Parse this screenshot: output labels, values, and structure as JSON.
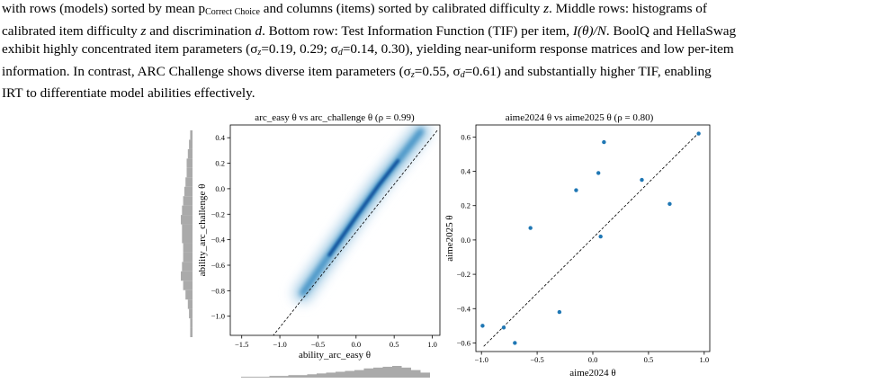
{
  "caption": {
    "line1_a": "with rows (models) sorted by mean ",
    "line1_p": "p",
    "line1_sub": "Correct Choice",
    "line1_b": " and columns (items) sorted by calibrated difficulty ",
    "line1_z": "z",
    "line1_c": ". Middle rows: histograms of",
    "line2_a": "calibrated item difficulty ",
    "line2_z": "z",
    "line2_b": " and discrimination ",
    "line2_d": "d",
    "line2_c": ". Bottom row: Test Information Function (TIF) per item, ",
    "line2_math": "I(θ)/N",
    "line2_d2": ". BoolQ and HellaSwag",
    "line3": "exhibit highly concentrated item parameters (σ",
    "line3_z": "z",
    "line3_b": "=0.19, 0.29; σ",
    "line3_d": "d",
    "line3_c": "=0.14, 0.30), yielding near-uniform response matrices and low per-item",
    "line4": "information. In contrast, ARC Challenge shows diverse item parameters (σ",
    "line4_z": "z",
    "line4_b": "=0.55, σ",
    "line4_d": "d",
    "line4_c": "=0.61) and substantially higher TIF, enabling",
    "line5": "IRT to differentiate model abilities effectively."
  },
  "chart_data": [
    {
      "type": "heatmap",
      "title": "arc_easy θ vs arc_challenge θ (ρ = 0.99)",
      "xlabel": "ability_arc_easy θ",
      "ylabel": "ability_arc_challenge θ",
      "xlim": [
        -1.65,
        1.1
      ],
      "ylim": [
        -1.15,
        0.5
      ],
      "xticks": [
        "−1.5",
        "−1.0",
        "−0.5",
        "0.0",
        "0.5",
        "1.0"
      ],
      "xtick_values": [
        -1.5,
        -1.0,
        -0.5,
        0.0,
        0.5,
        1.0
      ],
      "yticks": [
        "0.4",
        "0.2",
        "0.0",
        "−0.2",
        "−0.4",
        "−0.6",
        "−0.8",
        "−1.0"
      ],
      "ytick_values": [
        0.4,
        0.2,
        0.0,
        -0.2,
        -0.4,
        -0.6,
        -0.8,
        -1.0
      ],
      "identity_line": true,
      "density_ridge": [
        [
          -0.7,
          -0.82
        ],
        [
          -0.35,
          -0.52
        ],
        [
          0.0,
          -0.22
        ],
        [
          0.3,
          0.03
        ],
        [
          0.55,
          0.22
        ],
        [
          0.85,
          0.45
        ]
      ],
      "marginal_x_hist": [
        1,
        1,
        1,
        2,
        2,
        3,
        3,
        4,
        5,
        6,
        7,
        8,
        9,
        11,
        12,
        13,
        14,
        12,
        9,
        6
      ],
      "marginal_y_hist": [
        2,
        3,
        4,
        5,
        5,
        6,
        7,
        8,
        9,
        10,
        9,
        9,
        8,
        8,
        9,
        10,
        8,
        6,
        4,
        3,
        2,
        2
      ]
    },
    {
      "type": "scatter",
      "title": "aime2024 θ vs aime2025 θ (ρ = 0.80)",
      "xlabel": "aime2024 θ",
      "ylabel": "aime2025 θ",
      "xlim": [
        -1.05,
        1.05
      ],
      "ylim": [
        -0.65,
        0.67
      ],
      "xticks": [
        "−1.0",
        "−0.5",
        "0.0",
        "0.5",
        "1.0"
      ],
      "xtick_values": [
        -1.0,
        -0.5,
        0.0,
        0.5,
        1.0
      ],
      "yticks": [
        "0.6",
        "0.4",
        "0.2",
        "0.0",
        "−0.2",
        "−0.4",
        "−0.6"
      ],
      "ytick_values": [
        0.6,
        0.4,
        0.2,
        0.0,
        -0.2,
        -0.4,
        -0.6
      ],
      "identity_line": true,
      "color": "#1f77b4",
      "points": [
        {
          "x": -0.99,
          "y": -0.5
        },
        {
          "x": -0.8,
          "y": -0.51
        },
        {
          "x": -0.7,
          "y": -0.6
        },
        {
          "x": -0.56,
          "y": 0.07
        },
        {
          "x": -0.3,
          "y": -0.42
        },
        {
          "x": -0.15,
          "y": 0.29
        },
        {
          "x": 0.05,
          "y": 0.39
        },
        {
          "x": 0.07,
          "y": 0.02
        },
        {
          "x": 0.1,
          "y": 0.57
        },
        {
          "x": 0.44,
          "y": 0.35
        },
        {
          "x": 0.69,
          "y": 0.21
        },
        {
          "x": 0.95,
          "y": 0.62
        }
      ]
    }
  ]
}
